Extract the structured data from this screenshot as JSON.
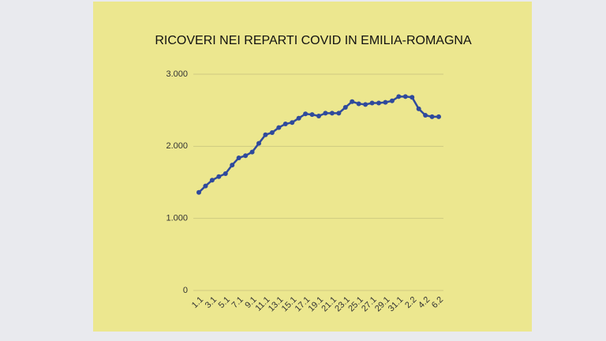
{
  "chart_data": {
    "type": "line",
    "title": "RICOVERI NEI REPARTI COVID IN EMILIA-ROMAGNA",
    "categories": [
      "1.1",
      null,
      "3.1",
      null,
      "5.1",
      null,
      "7.1",
      null,
      "9.1",
      null,
      "11.1",
      null,
      "13.1",
      null,
      "15.1",
      null,
      "17.1",
      null,
      "19.1",
      null,
      "21.1",
      null,
      "23.1",
      null,
      "25.1",
      null,
      "27.1",
      null,
      "29.1",
      null,
      "31.1",
      null,
      "2.2",
      null,
      "4.2",
      null,
      "6.2"
    ],
    "series": [
      {
        "color": "#2f4a9c",
        "values": [
          1360,
          1450,
          1530,
          1580,
          1620,
          1740,
          1840,
          1870,
          1920,
          2040,
          2160,
          2190,
          2260,
          2310,
          2330,
          2390,
          2450,
          2440,
          2420,
          2460,
          2460,
          2460,
          2540,
          2620,
          2590,
          2580,
          2600,
          2600,
          2610,
          2630,
          2690,
          2690,
          2680,
          2520,
          2430,
          2410,
          2410
        ]
      }
    ],
    "ylim": [
      0,
      3000
    ],
    "yticks": [
      0,
      {
        "value": 1000,
        "label": "1.000"
      },
      {
        "value": 2000,
        "label": "2.000"
      },
      {
        "value": 3000,
        "label": "3.000"
      }
    ],
    "grid": true
  }
}
